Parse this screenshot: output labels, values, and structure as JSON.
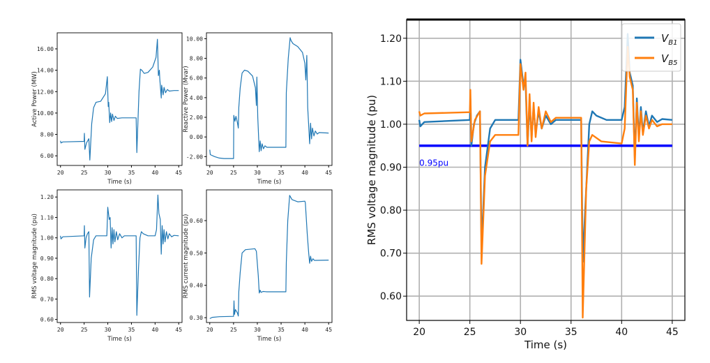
{
  "chart_data": [
    {
      "type": "line",
      "xlabel": "Time (s)",
      "ylabel": "Active Power (MW)",
      "xlim": [
        19.3,
        45.7
      ],
      "ylim": [
        5.1,
        17.5
      ],
      "xticks": [
        "20",
        "25",
        "30",
        "35",
        "40",
        "45"
      ],
      "yticks": [
        "6.00",
        "8.00",
        "10.00",
        "12.00",
        "14.00",
        "16.00"
      ],
      "grid": false,
      "series": [
        {
          "color": "#1f77b4",
          "x": [
            20,
            20.1,
            20.5,
            25,
            25.05,
            25.15,
            25.5,
            26.0,
            26.2,
            26.6,
            27,
            27.5,
            28.5,
            29.5,
            29.9,
            30.0,
            30.1,
            30.2,
            30.4,
            30.6,
            30.8,
            31.0,
            31.3,
            31.6,
            32,
            33,
            36,
            36.15,
            36.6,
            36.9,
            37.2,
            37.7,
            38.5,
            39.5,
            40.2,
            40.5,
            40.7,
            40.9,
            41.0,
            41.3,
            41.4,
            41.7,
            41.9,
            42.2,
            42.6,
            43,
            44,
            45
          ],
          "y": [
            7.4,
            7.2,
            7.3,
            7.35,
            8.1,
            6.6,
            7.2,
            7.6,
            5.6,
            9.0,
            10.5,
            11.0,
            11.1,
            11.8,
            13.4,
            12.0,
            10.6,
            11.0,
            9.1,
            10.0,
            9.2,
            9.9,
            9.3,
            9.7,
            9.5,
            9.55,
            9.55,
            6.3,
            12.0,
            14.1,
            14.0,
            13.7,
            13.8,
            14.3,
            15.2,
            16.9,
            13.5,
            14.0,
            13.2,
            11.4,
            12.6,
            11.7,
            12.4,
            11.9,
            12.2,
            12.05,
            12.1,
            12.1
          ]
        }
      ]
    },
    {
      "type": "line",
      "xlabel": "Time (s)",
      "ylabel": "Reactive Power (Mvar)",
      "xlim": [
        19.3,
        45.7
      ],
      "ylim": [
        -2.9,
        10.6
      ],
      "xticks": [
        "20",
        "25",
        "30",
        "35",
        "40",
        "45"
      ],
      "yticks": [
        "-2.00",
        "0.00",
        "2.00",
        "4.00",
        "6.00",
        "8.00",
        "10.00"
      ],
      "grid": false,
      "series": [
        {
          "color": "#1f77b4",
          "x": [
            20,
            20.1,
            21,
            22,
            23,
            25,
            25.05,
            25.3,
            25.5,
            25.8,
            26,
            26.1,
            26.4,
            26.8,
            27.3,
            28,
            29,
            29.6,
            29.8,
            29.9,
            30.1,
            30.4,
            30.6,
            30.8,
            31,
            31.3,
            31.6,
            32,
            36,
            36.1,
            36.5,
            36.9,
            37.1,
            37.5,
            38.5,
            39.5,
            40,
            40.2,
            40.4,
            40.6,
            41,
            41.2,
            41.4,
            41.6,
            41.9,
            42.2,
            42.6,
            43,
            45
          ],
          "y": [
            -1.3,
            -1.8,
            -2.0,
            -2.15,
            -2.2,
            -2.2,
            2.2,
            1.6,
            2.1,
            1.5,
            0.9,
            3.0,
            5.0,
            6.5,
            6.8,
            6.7,
            6.2,
            5.0,
            3.2,
            6.1,
            2.0,
            -1.5,
            -0.4,
            -1.4,
            -0.7,
            -1.2,
            -0.9,
            -1.05,
            -1.05,
            4.5,
            8.0,
            10.1,
            9.8,
            9.5,
            9.2,
            8.6,
            7.5,
            5.8,
            8.3,
            3.0,
            -0.7,
            1.4,
            -0.2,
            0.9,
            0.1,
            0.6,
            0.3,
            0.45,
            0.4
          ]
        }
      ]
    },
    {
      "type": "line",
      "xlabel": "Time (s)",
      "ylabel": "RMS voltage magnitude (pu)",
      "xlim": [
        19.3,
        45.7
      ],
      "ylim": [
        0.585,
        1.235
      ],
      "xticks": [
        "20",
        "25",
        "30",
        "35",
        "40",
        "45"
      ],
      "yticks": [
        "0.60",
        "0.70",
        "0.80",
        "0.90",
        "1.00",
        "1.10",
        "1.20"
      ],
      "grid": false,
      "series": [
        {
          "color": "#1f77b4",
          "x": [
            20,
            20.1,
            20.5,
            25,
            25.05,
            25.15,
            25.4,
            25.7,
            26.0,
            26.15,
            26.5,
            27,
            27.5,
            28.5,
            29.8,
            30.0,
            30.3,
            30.5,
            30.7,
            30.9,
            31.1,
            31.3,
            31.5,
            31.8,
            32.1,
            32.5,
            33,
            33.5,
            36,
            36.15,
            36.5,
            36.8,
            37.1,
            37.5,
            38.5,
            40,
            40.3,
            40.6,
            40.8,
            41.1,
            41.3,
            41.5,
            41.7,
            41.9,
            42.1,
            42.4,
            42.7,
            43.0,
            43.5,
            44,
            45
          ],
          "y": [
            1.01,
            0.995,
            1.005,
            1.01,
            1.06,
            0.95,
            1.0,
            1.02,
            1.03,
            0.71,
            0.9,
            0.99,
            1.01,
            1.01,
            1.01,
            1.15,
            1.09,
            1.1,
            0.95,
            1.05,
            0.97,
            1.04,
            0.98,
            1.03,
            0.99,
            1.02,
            1.0,
            1.01,
            1.01,
            0.62,
            0.85,
            1.0,
            1.03,
            1.02,
            1.01,
            1.01,
            1.04,
            1.21,
            1.12,
            1.09,
            0.92,
            1.06,
            0.97,
            1.04,
            0.98,
            1.03,
            0.995,
            1.02,
            1.005,
            1.012,
            1.01
          ]
        }
      ]
    },
    {
      "type": "line",
      "xlabel": "Time (s)",
      "ylabel": "RMS current magnitude (pu)",
      "xlim": [
        19.3,
        45.7
      ],
      "ylim": [
        0.285,
        0.695
      ],
      "xticks": [
        "20",
        "25",
        "30",
        "35",
        "40",
        "45"
      ],
      "yticks": [
        "0.30",
        "0.40",
        "0.50",
        "0.60"
      ],
      "grid": false,
      "series": [
        {
          "color": "#1f77b4",
          "x": [
            20,
            20.5,
            22,
            25,
            25.1,
            25.2,
            25.4,
            25.8,
            26.0,
            26.1,
            26.4,
            26.8,
            27.5,
            29.5,
            29.8,
            30.2,
            30.4,
            30.6,
            30.8,
            31.2,
            32,
            36,
            36.1,
            36.4,
            36.8,
            37.3,
            38.5,
            40,
            40.1,
            40.5,
            40.8,
            41.0,
            41.2,
            41.4,
            41.7,
            42,
            45
          ],
          "y": [
            0.297,
            0.301,
            0.303,
            0.304,
            0.352,
            0.31,
            0.325,
            0.315,
            0.305,
            0.38,
            0.44,
            0.5,
            0.51,
            0.513,
            0.505,
            0.43,
            0.376,
            0.385,
            0.378,
            0.381,
            0.38,
            0.38,
            0.47,
            0.6,
            0.678,
            0.665,
            0.658,
            0.66,
            0.655,
            0.56,
            0.5,
            0.468,
            0.49,
            0.474,
            0.482,
            0.477,
            0.478
          ]
        }
      ]
    },
    {
      "type": "line",
      "xlabel": "Time (s)",
      "ylabel": "RMS voltage magnitude (pu)",
      "xlim": [
        18.75,
        46.25
      ],
      "ylim": [
        0.5435,
        1.2435
      ],
      "xticks": [
        "20",
        "25",
        "30",
        "35",
        "40",
        "45"
      ],
      "yticks": [
        "0.60",
        "0.70",
        "0.80",
        "0.90",
        "1.00",
        "1.10",
        "1.20"
      ],
      "grid": true,
      "legend": "top-right",
      "hline": {
        "y": 0.95,
        "color": "#0000ff",
        "label": "0.95pu"
      },
      "series": [
        {
          "name": "V_B1",
          "legend_main": "V",
          "legend_sub": "B1",
          "color": "#1f77b4",
          "x": [
            20,
            20.1,
            20.5,
            25,
            25.05,
            25.15,
            25.4,
            25.7,
            26.0,
            26.15,
            26.5,
            27,
            27.5,
            28.5,
            29.8,
            30.0,
            30.3,
            30.5,
            30.7,
            30.9,
            31.1,
            31.3,
            31.5,
            31.8,
            32.1,
            32.5,
            33,
            33.5,
            36,
            36.15,
            36.5,
            36.8,
            37.1,
            37.5,
            38.5,
            40,
            40.3,
            40.6,
            40.8,
            41.1,
            41.3,
            41.5,
            41.7,
            41.9,
            42.1,
            42.4,
            42.7,
            43.0,
            43.5,
            44,
            45
          ],
          "y": [
            1.01,
            0.995,
            1.005,
            1.01,
            1.06,
            0.95,
            1.0,
            1.02,
            1.03,
            0.71,
            0.9,
            0.99,
            1.01,
            1.01,
            1.01,
            1.15,
            1.09,
            1.1,
            0.95,
            1.05,
            0.97,
            1.04,
            0.98,
            1.03,
            0.99,
            1.02,
            1.0,
            1.01,
            1.01,
            0.68,
            0.85,
            1.0,
            1.03,
            1.02,
            1.01,
            1.01,
            1.04,
            1.21,
            1.12,
            1.09,
            0.92,
            1.06,
            0.97,
            1.04,
            0.98,
            1.03,
            0.995,
            1.02,
            1.005,
            1.012,
            1.01
          ]
        },
        {
          "name": "V_B5",
          "legend_main": "V",
          "legend_sub": "B5",
          "color": "#ff7f0e",
          "x": [
            20,
            20.1,
            20.5,
            25,
            25.05,
            25.15,
            25.5,
            26.0,
            26.15,
            26.5,
            27,
            27.5,
            29.8,
            30.0,
            30.3,
            30.5,
            30.7,
            30.9,
            31.1,
            31.3,
            31.5,
            31.8,
            32.1,
            32.5,
            33,
            33.5,
            36,
            36.15,
            36.5,
            36.8,
            37.1,
            38,
            40,
            40.3,
            40.6,
            40.8,
            41.1,
            41.3,
            41.5,
            41.7,
            41.9,
            42.1,
            42.4,
            42.7,
            43,
            43.5,
            44,
            45
          ],
          "y": [
            1.03,
            1.02,
            1.025,
            1.028,
            1.08,
            0.96,
            1.01,
            1.03,
            0.675,
            0.88,
            0.96,
            0.975,
            0.975,
            1.14,
            1.08,
            1.12,
            0.95,
            1.07,
            0.96,
            1.05,
            0.97,
            1.04,
            0.99,
            1.03,
            1.005,
            1.015,
            1.015,
            0.55,
            0.85,
            0.96,
            0.975,
            0.96,
            0.955,
            0.99,
            1.18,
            1.11,
            1.08,
            0.905,
            1.05,
            0.96,
            1.03,
            0.975,
            1.02,
            0.99,
            1.01,
            0.995,
            1.0,
            1.0
          ]
        }
      ]
    }
  ]
}
